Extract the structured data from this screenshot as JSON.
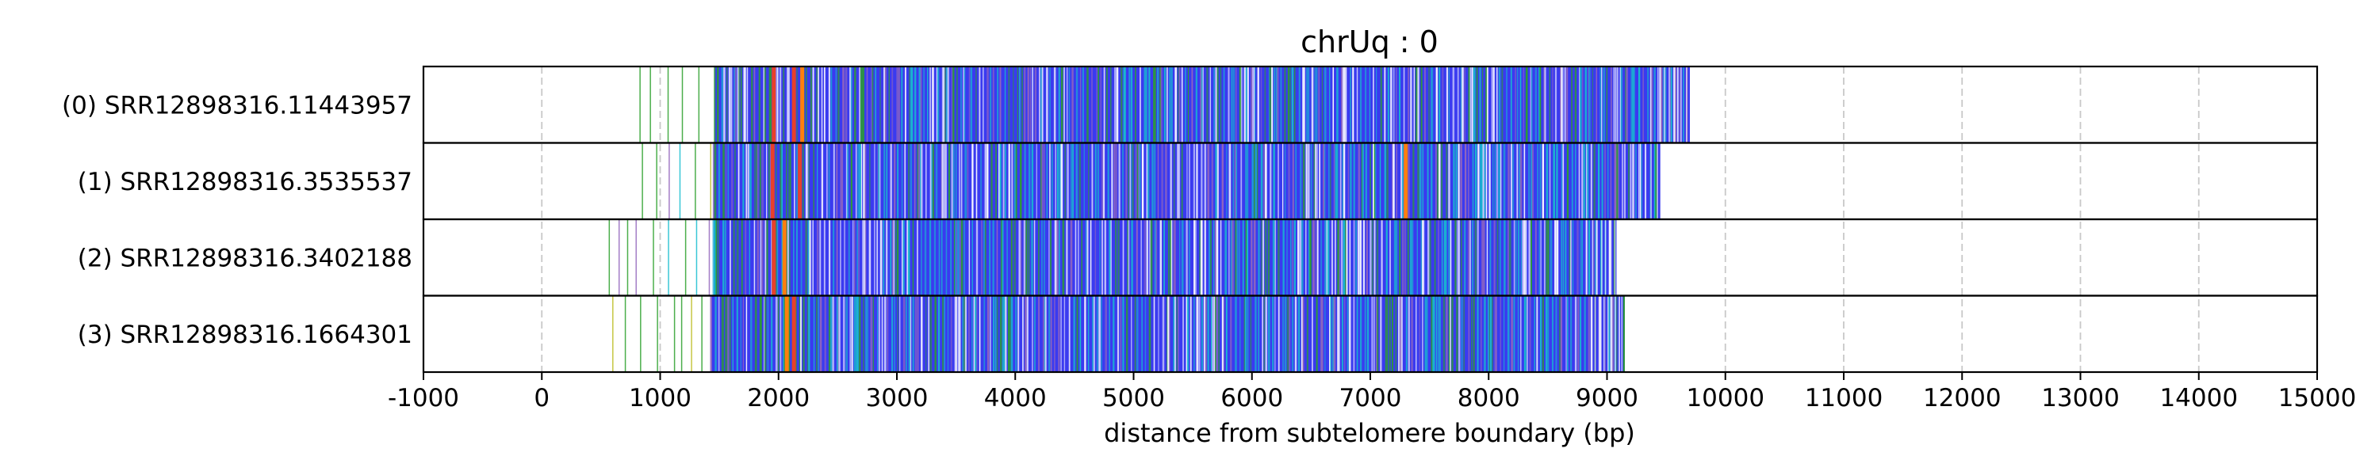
{
  "chart_data": {
    "type": "bar",
    "title": "chrUq : 0",
    "xlabel": "distance from subtelomere boundary (bp)",
    "ylabel": "",
    "xlim": [
      -1000,
      15000
    ],
    "xticks": [
      -1000,
      0,
      1000,
      2000,
      3000,
      4000,
      5000,
      6000,
      7000,
      8000,
      9000,
      10000,
      11000,
      12000,
      13000,
      14000,
      15000
    ],
    "grid": "vertical dashed at each x tick",
    "colors": {
      "main_repeat": "#3a3af0",
      "scattered_a": "#2ca02c",
      "scattered_b": "#bcbd22",
      "scattered_c": "#9467bd",
      "highlight_a": "#e8402a",
      "highlight_b": "#ff7f0e",
      "highlight_c": "#17becf",
      "gap": "#ffffff",
      "grid": "#c8c8c8"
    },
    "reads": [
      {
        "label": "(0) SRR12898316.11443957",
        "scattered_start": 830,
        "dense_start": 1460,
        "end": 9700,
        "highlights": [
          {
            "x": 1960,
            "color": "highlight_a"
          },
          {
            "x": 2130,
            "color": "highlight_a"
          },
          {
            "x": 2200,
            "color": "highlight_b"
          }
        ]
      },
      {
        "label": "(1) SRR12898316.3535537",
        "scattered_start": 850,
        "dense_start": 1450,
        "end": 9450,
        "highlights": [
          {
            "x": 1950,
            "color": "highlight_a"
          },
          {
            "x": 2180,
            "color": "highlight_a"
          },
          {
            "x": 7300,
            "color": "highlight_b"
          }
        ]
      },
      {
        "label": "(2) SRR12898316.3402188",
        "scattered_start": 570,
        "dense_start": 1450,
        "end": 9080,
        "highlights": [
          {
            "x": 1960,
            "color": "highlight_a"
          },
          {
            "x": 2050,
            "color": "highlight_b"
          }
        ]
      },
      {
        "label": "(3) SRR12898316.1664301",
        "scattered_start": 600,
        "dense_start": 1430,
        "end": 9150,
        "highlights": [
          {
            "x": 2070,
            "color": "highlight_b"
          },
          {
            "x": 2130,
            "color": "highlight_a"
          }
        ]
      }
    ]
  }
}
